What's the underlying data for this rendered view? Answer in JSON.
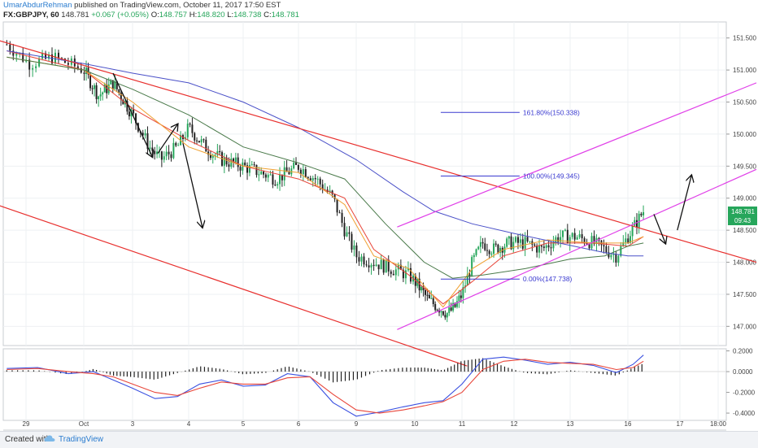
{
  "header": {
    "author": "UmarAbdurRehman",
    "published": "published on TradingView.com, October 11, 2017 17:50 EST",
    "symbol": "FX:GBPJPY, 60",
    "last": "148.781",
    "change": "+0.067 (+0.05%)",
    "open_label": "O:",
    "open": "148.757",
    "high_label": "H:",
    "high": "148.820",
    "low_label": "L:",
    "low": "148.738",
    "close_label": "C:",
    "close": "148.781"
  },
  "footer": {
    "created_with": "Created with",
    "brand": "TradingView",
    "cloud_icon": "tradingview-cloud-icon"
  },
  "colors": {
    "up_candle": "#26a65b",
    "down_candle": "#222222",
    "channel_down": "#e8302e",
    "channel_up": "#e040e8",
    "ema_red": "#e8463a",
    "ema_orange": "#f0a030",
    "sma_green": "#4a7a4a",
    "sma_blue": "#4a50c8",
    "fib": "#3a3ad0",
    "macd": "#3a50e0",
    "signal": "#e8463a",
    "hist": "#222222"
  },
  "chart_data": {
    "type": "candlestick",
    "symbol": "FX:GBPJPY",
    "timeframe": "60",
    "x_tick_labels": [
      "29",
      "Oct",
      "3",
      "4",
      "5",
      "6",
      "9",
      "10",
      "11",
      "12",
      "13",
      "16",
      "17",
      "18:00"
    ],
    "y_tick_labels": [
      "151.500",
      "151.000",
      "150.500",
      "150.000",
      "149.500",
      "149.000",
      "148.500",
      "148.000",
      "147.500",
      "147.000"
    ],
    "ylim": [
      146.7,
      151.75
    ],
    "price_label": "148.781",
    "price_label_time": "09:43",
    "close_path": [
      [
        0,
        151.4
      ],
      [
        0.3,
        151.1
      ],
      [
        0.6,
        151.2
      ],
      [
        1.0,
        151.0
      ],
      [
        1.3,
        150.6
      ],
      [
        1.6,
        150.8
      ],
      [
        2.0,
        150.3
      ],
      [
        2.3,
        149.8
      ],
      [
        2.5,
        149.6
      ],
      [
        2.8,
        149.8
      ],
      [
        3.0,
        150.1
      ],
      [
        3.3,
        149.8
      ],
      [
        3.6,
        149.6
      ],
      [
        4.0,
        149.5
      ],
      [
        4.3,
        149.4
      ],
      [
        4.6,
        149.3
      ],
      [
        5.0,
        149.5
      ],
      [
        5.3,
        149.3
      ],
      [
        5.6,
        149.0
      ],
      [
        5.8,
        148.5
      ],
      [
        6.0,
        148.1
      ],
      [
        6.3,
        148.0
      ],
      [
        6.6,
        147.9
      ],
      [
        6.9,
        147.8
      ],
      [
        7.1,
        147.6
      ],
      [
        7.3,
        147.4
      ],
      [
        7.5,
        147.3
      ],
      [
        7.7,
        147.2
      ],
      [
        7.85,
        147.3
      ],
      [
        8.0,
        147.5
      ],
      [
        8.2,
        148.0
      ],
      [
        8.4,
        148.3
      ],
      [
        8.6,
        148.2
      ],
      [
        8.9,
        148.3
      ],
      [
        9.2,
        148.3
      ],
      [
        9.5,
        148.2
      ],
      [
        9.8,
        148.4
      ],
      [
        10.1,
        148.4
      ],
      [
        10.4,
        148.3
      ],
      [
        10.6,
        148.2
      ],
      [
        10.8,
        148.1
      ],
      [
        11.0,
        148.4
      ],
      [
        11.3,
        148.8
      ]
    ],
    "moving_averages": [
      {
        "name": "",
        "color_key": "ema_red",
        "points": [
          [
            0,
            151.3
          ],
          [
            1,
            151.0
          ],
          [
            2,
            150.4
          ],
          [
            3,
            149.9
          ],
          [
            4,
            149.5
          ],
          [
            5,
            149.3
          ],
          [
            5.8,
            149.0
          ],
          [
            6.3,
            148.2
          ],
          [
            6.9,
            147.8
          ],
          [
            7.6,
            147.35
          ],
          [
            8.2,
            147.7
          ],
          [
            8.8,
            148.1
          ],
          [
            9.6,
            148.3
          ],
          [
            10.4,
            148.3
          ],
          [
            11.0,
            148.25
          ],
          [
            11.3,
            148.4
          ]
        ]
      },
      {
        "name": "",
        "color_key": "ema_orange",
        "points": [
          [
            0,
            151.2
          ],
          [
            1,
            151.0
          ],
          [
            2,
            150.5
          ],
          [
            3,
            149.8
          ],
          [
            4,
            149.5
          ],
          [
            5,
            149.4
          ],
          [
            5.8,
            148.9
          ],
          [
            6.3,
            148.1
          ],
          [
            6.9,
            147.9
          ],
          [
            7.6,
            147.3
          ],
          [
            8.2,
            147.9
          ],
          [
            8.8,
            148.2
          ],
          [
            9.6,
            148.35
          ],
          [
            10.4,
            148.3
          ],
          [
            11.0,
            148.3
          ],
          [
            11.3,
            148.4
          ]
        ]
      },
      {
        "name": "",
        "color_key": "sma_green",
        "points": [
          [
            0,
            151.2
          ],
          [
            1,
            151.0
          ],
          [
            2,
            150.7
          ],
          [
            3,
            150.3
          ],
          [
            4,
            149.8
          ],
          [
            5,
            149.55
          ],
          [
            5.8,
            149.3
          ],
          [
            6.5,
            148.6
          ],
          [
            7.2,
            148.0
          ],
          [
            7.8,
            147.75
          ],
          [
            8.4,
            147.8
          ],
          [
            9.2,
            147.9
          ],
          [
            10.0,
            148.05
          ],
          [
            10.6,
            148.1
          ],
          [
            11.0,
            148.25
          ],
          [
            11.3,
            148.3
          ]
        ]
      },
      {
        "name": "",
        "color_key": "sma_blue",
        "points": [
          [
            0,
            151.3
          ],
          [
            1,
            151.1
          ],
          [
            2,
            150.95
          ],
          [
            3,
            150.8
          ],
          [
            4,
            150.5
          ],
          [
            5,
            150.1
          ],
          [
            6,
            149.6
          ],
          [
            6.8,
            149.1
          ],
          [
            7.4,
            148.8
          ],
          [
            8.2,
            148.6
          ],
          [
            9.0,
            148.45
          ],
          [
            9.8,
            148.3
          ],
          [
            10.6,
            148.15
          ],
          [
            11.0,
            148.1
          ],
          [
            11.3,
            148.1
          ]
        ]
      }
    ],
    "fibonacci": [
      {
        "label": "161.80%(150.338)",
        "level": 150.338
      },
      {
        "label": "100.00%(149.345)",
        "level": 149.345
      },
      {
        "label": "0.00%(147.738)",
        "level": 147.738
      }
    ],
    "channels": [
      {
        "color_key": "channel_down",
        "points": [
          [
            -0.5,
            151.6
          ],
          [
            14.0,
            148.0
          ]
        ]
      },
      {
        "color_key": "channel_down",
        "points": [
          [
            -0.5,
            149.05
          ],
          [
            8.1,
            146.38
          ]
        ]
      },
      {
        "color_key": "channel_up",
        "points": [
          [
            6.7,
            148.55
          ],
          [
            14.0,
            150.8
          ]
        ]
      },
      {
        "color_key": "channel_up",
        "points": [
          [
            6.7,
            146.95
          ],
          [
            14.0,
            149.45
          ]
        ]
      }
    ],
    "arrows": [
      {
        "from": [
          1.6,
          150.95
        ],
        "to": [
          2.35,
          149.65
        ]
      },
      {
        "from": [
          2.45,
          149.7
        ],
        "to": [
          2.8,
          150.15
        ]
      },
      {
        "from": [
          2.9,
          149.85
        ],
        "to": [
          3.25,
          148.55
        ]
      },
      {
        "from": [
          11.5,
          148.75
        ],
        "to": [
          11.72,
          148.3
        ]
      },
      {
        "from": [
          11.95,
          148.5
        ],
        "to": [
          12.3,
          149.35
        ]
      }
    ],
    "oscillator": {
      "name": "MACD",
      "ylim": [
        -0.47,
        0.22
      ],
      "y_tick_labels": [
        "0.2000",
        "0.0000",
        "-0.2000",
        "-0.4000"
      ],
      "macd": [
        [
          0,
          0.03
        ],
        [
          0.4,
          0.04
        ],
        [
          0.8,
          -0.02
        ],
        [
          1.2,
          0.0
        ],
        [
          1.6,
          -0.08
        ],
        [
          2.0,
          -0.16
        ],
        [
          2.4,
          -0.26
        ],
        [
          2.8,
          -0.24
        ],
        [
          3.2,
          -0.12
        ],
        [
          3.6,
          -0.08
        ],
        [
          4.0,
          -0.14
        ],
        [
          4.4,
          -0.13
        ],
        [
          4.8,
          -0.02
        ],
        [
          5.2,
          -0.05
        ],
        [
          5.6,
          -0.3
        ],
        [
          6.0,
          -0.43
        ],
        [
          6.4,
          -0.39
        ],
        [
          6.8,
          -0.34
        ],
        [
          7.2,
          -0.3
        ],
        [
          7.6,
          -0.28
        ],
        [
          8.0,
          -0.12
        ],
        [
          8.4,
          0.12
        ],
        [
          8.8,
          0.14
        ],
        [
          9.2,
          0.11
        ],
        [
          9.6,
          0.07
        ],
        [
          10.0,
          0.09
        ],
        [
          10.4,
          0.06
        ],
        [
          10.8,
          -0.01
        ],
        [
          11.1,
          0.07
        ],
        [
          11.3,
          0.16
        ]
      ],
      "signal": [
        [
          0,
          0.02
        ],
        [
          0.4,
          0.03
        ],
        [
          0.8,
          0.0
        ],
        [
          1.2,
          -0.02
        ],
        [
          1.6,
          -0.05
        ],
        [
          2.0,
          -0.12
        ],
        [
          2.4,
          -0.2
        ],
        [
          2.8,
          -0.23
        ],
        [
          3.2,
          -0.16
        ],
        [
          3.6,
          -0.1
        ],
        [
          4.0,
          -0.12
        ],
        [
          4.4,
          -0.12
        ],
        [
          4.8,
          -0.06
        ],
        [
          5.2,
          -0.05
        ],
        [
          5.6,
          -0.22
        ],
        [
          6.0,
          -0.37
        ],
        [
          6.4,
          -0.4
        ],
        [
          6.8,
          -0.37
        ],
        [
          7.2,
          -0.33
        ],
        [
          7.6,
          -0.29
        ],
        [
          8.0,
          -0.2
        ],
        [
          8.4,
          0.02
        ],
        [
          8.8,
          0.1
        ],
        [
          9.2,
          0.12
        ],
        [
          9.6,
          0.09
        ],
        [
          10.0,
          0.08
        ],
        [
          10.4,
          0.07
        ],
        [
          10.8,
          0.02
        ],
        [
          11.1,
          0.04
        ],
        [
          11.3,
          0.1
        ]
      ]
    }
  }
}
